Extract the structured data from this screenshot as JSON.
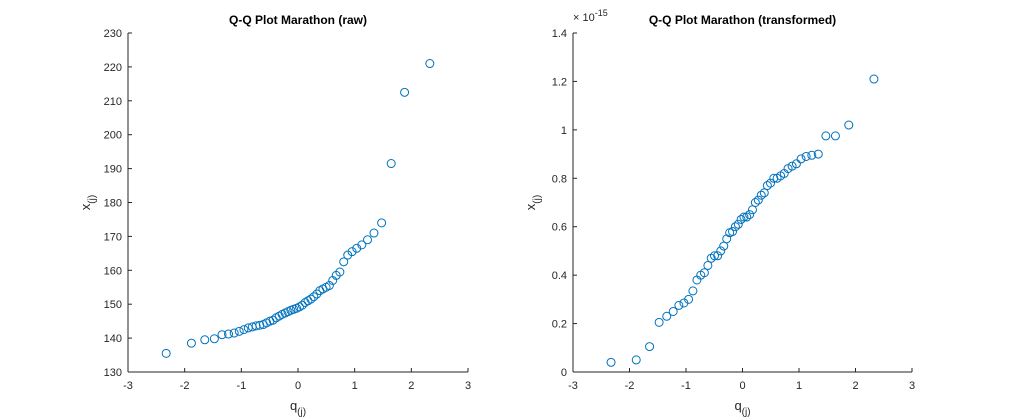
{
  "chart_data": [
    {
      "type": "scatter",
      "title": "Q-Q Plot Marathon (raw)",
      "xlabel": {
        "text": "q",
        "subscript": "(j)"
      },
      "ylabel": {
        "text": "x",
        "subscript": "(j)"
      },
      "xlim": [
        -3,
        3
      ],
      "xticks": [
        -3,
        -2,
        -1,
        0,
        1,
        2,
        3
      ],
      "ylim": [
        130,
        230
      ],
      "yticks": [
        130,
        140,
        150,
        160,
        170,
        180,
        190,
        200,
        210,
        220,
        230
      ],
      "series": [
        {
          "color": "#0072bd",
          "x": [
            -2.3263,
            -1.8808,
            -1.6449,
            -1.4758,
            -1.3408,
            -1.2265,
            -1.1264,
            -1.0364,
            -0.9542,
            -0.8779,
            -0.8064,
            -0.7388,
            -0.6745,
            -0.6128,
            -0.5534,
            -0.4959,
            -0.4399,
            -0.3853,
            -0.3319,
            -0.2793,
            -0.2275,
            -0.1764,
            -0.1257,
            -0.0753,
            -0.0251,
            0.0251,
            0.0753,
            0.1257,
            0.1764,
            0.2275,
            0.2793,
            0.3319,
            0.3853,
            0.4399,
            0.4959,
            0.5534,
            0.6128,
            0.6745,
            0.7388,
            0.8064,
            0.8779,
            0.9542,
            1.0364,
            1.1264,
            1.2265,
            1.3408,
            1.4758,
            1.6449,
            1.8808,
            2.3263
          ],
          "values": [
            135.5,
            138.5,
            139.5,
            139.8,
            141,
            141.2,
            141.5,
            142,
            142.5,
            143,
            143.3,
            143.6,
            143.8,
            144,
            144.5,
            145,
            145.3,
            146,
            146.5,
            147,
            147.4,
            147.8,
            148.2,
            148.5,
            148.8,
            149.2,
            149.7,
            150.5,
            151,
            151.5,
            152.2,
            153,
            154,
            154.5,
            155,
            155.5,
            157,
            158.5,
            159.5,
            162.5,
            164.5,
            165.5,
            166.5,
            167.5,
            169,
            171,
            174,
            191.5,
            212.5,
            221
          ]
        }
      ]
    },
    {
      "type": "scatter",
      "title": "Q-Q Plot Marathon (transformed)",
      "xlabel": {
        "text": "q",
        "subscript": "(j)"
      },
      "ylabel": {
        "text": "x",
        "subscript": "(j)"
      },
      "exponent_label": {
        "base": "× 10",
        "power": "-15"
      },
      "xlim": [
        -3,
        3
      ],
      "xticks": [
        -3,
        -2,
        -1,
        0,
        1,
        2,
        3
      ],
      "ylim": [
        0,
        1.4
      ],
      "yticks": [
        0,
        0.2,
        0.4,
        0.6,
        0.8,
        1,
        1.2,
        1.4
      ],
      "series": [
        {
          "color": "#0072bd",
          "x": [
            -2.3263,
            -1.8808,
            -1.6449,
            -1.4758,
            -1.3408,
            -1.2265,
            -1.1264,
            -1.0364,
            -0.9542,
            -0.8779,
            -0.8064,
            -0.7388,
            -0.6745,
            -0.6128,
            -0.5534,
            -0.4959,
            -0.4399,
            -0.3853,
            -0.3319,
            -0.2793,
            -0.2275,
            -0.1764,
            -0.1257,
            -0.0753,
            -0.0251,
            0.0251,
            0.0753,
            0.1257,
            0.1764,
            0.2275,
            0.2793,
            0.3319,
            0.3853,
            0.4399,
            0.4959,
            0.5534,
            0.6128,
            0.6745,
            0.7388,
            0.8064,
            0.8779,
            0.9542,
            1.0364,
            1.1264,
            1.2265,
            1.3408,
            1.4758,
            1.6449,
            1.8808,
            2.3263
          ],
          "values": [
            0.04,
            0.05,
            0.105,
            0.205,
            0.23,
            0.25,
            0.275,
            0.285,
            0.3,
            0.335,
            0.38,
            0.4,
            0.41,
            0.44,
            0.47,
            0.48,
            0.48,
            0.5,
            0.52,
            0.55,
            0.575,
            0.58,
            0.6,
            0.61,
            0.63,
            0.64,
            0.64,
            0.65,
            0.67,
            0.7,
            0.71,
            0.73,
            0.74,
            0.77,
            0.78,
            0.8,
            0.8,
            0.81,
            0.82,
            0.84,
            0.85,
            0.86,
            0.88,
            0.89,
            0.895,
            0.9,
            0.975,
            0.975,
            1.02,
            1.21
          ]
        }
      ]
    }
  ]
}
